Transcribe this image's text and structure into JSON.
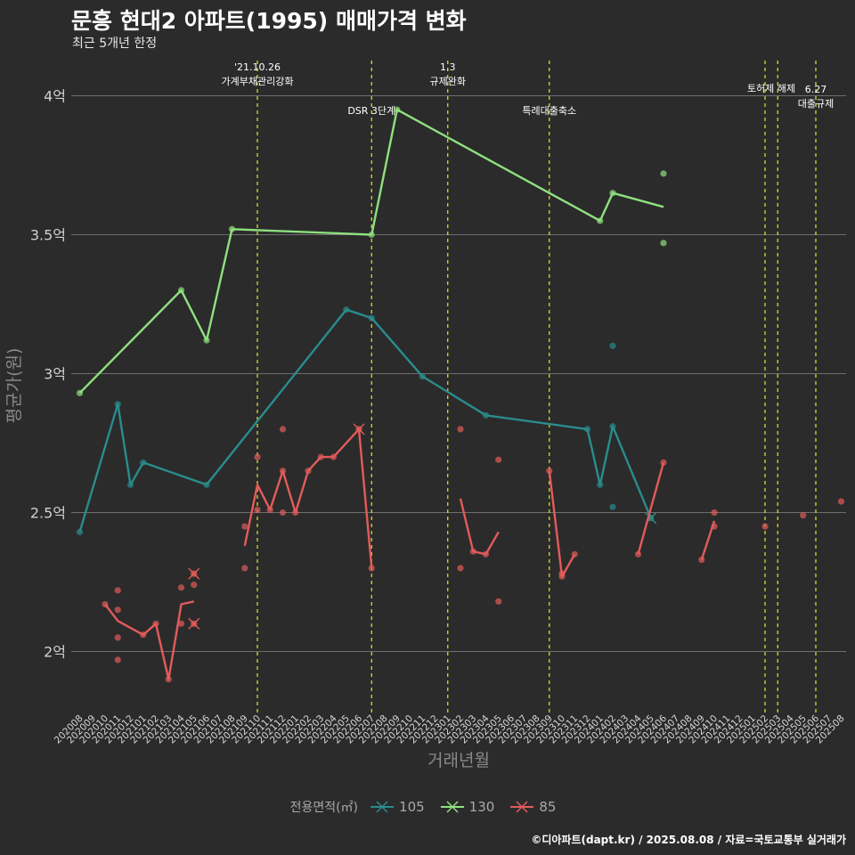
{
  "title": "문흥 현대2 아파트(1995) 매매가격 변화",
  "subtitle": "최근 5개년 한정",
  "caption": "©디아파트(dapt.kr) / 2025.08.08 / 자료=국토교통부 실거래가",
  "legend": {
    "title": "전용면적(㎡)",
    "items": [
      {
        "label": "105",
        "color": "#2a8c8c"
      },
      {
        "label": "130",
        "color": "#8fe07f"
      },
      {
        "label": "85",
        "color": "#e35b5b"
      }
    ]
  },
  "chart_data": {
    "type": "line",
    "xlabel": "거래년월",
    "ylabel": "평균가(원)",
    "ylim": [
      1.8,
      4.12
    ],
    "yticks": [
      {
        "value": 2,
        "label": "2억"
      },
      {
        "value": 2.5,
        "label": "2.5억"
      },
      {
        "value": 3,
        "label": "3억"
      },
      {
        "value": 3.5,
        "label": "3.5억"
      },
      {
        "value": 4,
        "label": "4억"
      }
    ],
    "categories": [
      "202008",
      "202009",
      "202010",
      "202011",
      "202012",
      "202101",
      "202102",
      "202103",
      "202104",
      "202105",
      "202106",
      "202107",
      "202108",
      "202109",
      "202110",
      "202111",
      "202112",
      "202201",
      "202202",
      "202203",
      "202204",
      "202205",
      "202206",
      "202207",
      "202208",
      "202209",
      "202210",
      "202211",
      "202212",
      "202301",
      "202302",
      "202303",
      "202304",
      "202305",
      "202306",
      "202307",
      "202308",
      "202309",
      "202310",
      "202311",
      "202312",
      "202401",
      "202402",
      "202403",
      "202404",
      "202405",
      "202406",
      "202407",
      "202408",
      "202409",
      "202410",
      "202411",
      "202412",
      "202501",
      "202502",
      "202503",
      "202504",
      "202505",
      "202506",
      "202507",
      "202508"
    ],
    "events": [
      {
        "x": "202110",
        "lines": [
          "'21.10.26",
          "가계부채관리강화"
        ],
        "level": 0
      },
      {
        "x": "202207",
        "lines": [
          "DSR 3단계"
        ],
        "level": 2
      },
      {
        "x": "202301",
        "lines": [
          "1.3",
          "규제완화"
        ],
        "level": 0
      },
      {
        "x": "202309",
        "lines": [
          "특례대출축소"
        ],
        "level": 2
      },
      {
        "x": "202502",
        "lines": [
          "토허제 해제"
        ],
        "level": 1,
        "anchor": "middle-right"
      },
      {
        "x": "202503",
        "lines": [],
        "level": 1
      },
      {
        "x": "202506",
        "lines": [
          "6.27",
          "대출규제"
        ],
        "level": 3
      }
    ],
    "series": [
      {
        "name": "105",
        "color": "#2a8c8c",
        "line": [
          [
            "202008",
            2.43
          ],
          [
            "202011",
            2.89
          ],
          [
            "202012",
            2.6
          ],
          [
            "202101",
            2.68
          ],
          [
            "202106",
            2.6
          ],
          [
            "202205",
            3.23
          ],
          [
            "202207",
            3.2
          ],
          [
            "202211",
            2.99
          ],
          [
            "202304",
            2.85
          ],
          [
            "202312",
            2.8
          ],
          [
            "202401",
            2.6
          ],
          [
            "202402",
            2.81
          ],
          [
            "202405",
            2.48
          ]
        ],
        "points": [
          [
            "202008",
            2.43
          ],
          [
            "202011",
            2.89
          ],
          [
            "202012",
            2.6
          ],
          [
            "202101",
            2.68
          ],
          [
            "202106",
            2.6
          ],
          [
            "202205",
            3.23
          ],
          [
            "202207",
            3.2
          ],
          [
            "202211",
            2.99
          ],
          [
            "202304",
            2.85
          ],
          [
            "202312",
            2.8
          ],
          [
            "202401",
            2.6
          ],
          [
            "202402",
            2.81
          ],
          [
            "202402",
            3.1
          ],
          [
            "202402",
            2.52
          ]
        ],
        "crosses": [
          [
            "202405",
            2.48
          ]
        ]
      },
      {
        "name": "130",
        "color": "#8fe07f",
        "line": [
          [
            "202008",
            2.93
          ],
          [
            "202104",
            3.3
          ],
          [
            "202106",
            3.12
          ],
          [
            "202108",
            3.52
          ],
          [
            "202207",
            3.5
          ],
          [
            "202209",
            3.95
          ],
          [
            "202401",
            3.55
          ],
          [
            "202402",
            3.65
          ],
          [
            "202406",
            3.6
          ]
        ],
        "points": [
          [
            "202008",
            2.93
          ],
          [
            "202104",
            3.3
          ],
          [
            "202106",
            3.12
          ],
          [
            "202108",
            3.52
          ],
          [
            "202207",
            3.5
          ],
          [
            "202209",
            3.95
          ],
          [
            "202401",
            3.55
          ],
          [
            "202402",
            3.65
          ],
          [
            "202406",
            3.72
          ],
          [
            "202406",
            3.47
          ]
        ],
        "crosses": []
      },
      {
        "name": "85",
        "color": "#e35b5b",
        "segments": [
          [
            [
              "202010",
              2.17
            ],
            [
              "202011",
              2.11
            ],
            [
              "202101",
              2.06
            ],
            [
              "202102",
              2.1
            ],
            [
              "202103",
              1.9
            ],
            [
              "202104",
              2.17
            ],
            [
              "202105",
              2.18
            ]
          ],
          [
            [
              "202109",
              2.38
            ],
            [
              "202110",
              2.6
            ],
            [
              "202111",
              2.51
            ],
            [
              "202112",
              2.65
            ],
            [
              "202201",
              2.5
            ],
            [
              "202202",
              2.65
            ],
            [
              "202203",
              2.7
            ],
            [
              "202204",
              2.7
            ],
            [
              "202206",
              2.8
            ],
            [
              "202207",
              2.3
            ]
          ],
          [
            [
              "202302",
              2.55
            ],
            [
              "202303",
              2.36
            ],
            [
              "202304",
              2.35
            ],
            [
              "202305",
              2.43
            ]
          ],
          [
            [
              "202309",
              2.65
            ],
            [
              "202310",
              2.27
            ],
            [
              "202311",
              2.35
            ]
          ],
          [
            [
              "202404",
              2.35
            ],
            [
              "202406",
              2.68
            ]
          ],
          [
            [
              "202409",
              2.33
            ],
            [
              "202410",
              2.47
            ]
          ]
        ],
        "points": [
          [
            "202010",
            2.17
          ],
          [
            "202011",
            2.22
          ],
          [
            "202011",
            2.15
          ],
          [
            "202011",
            2.05
          ],
          [
            "202011",
            1.97
          ],
          [
            "202101",
            2.06
          ],
          [
            "202102",
            2.1
          ],
          [
            "202103",
            1.9
          ],
          [
            "202104",
            2.23
          ],
          [
            "202104",
            2.1
          ],
          [
            "202105",
            2.24
          ],
          [
            "202109",
            2.45
          ],
          [
            "202109",
            2.3
          ],
          [
            "202110",
            2.7
          ],
          [
            "202110",
            2.51
          ],
          [
            "202111",
            2.51
          ],
          [
            "202112",
            2.8
          ],
          [
            "202112",
            2.65
          ],
          [
            "202112",
            2.5
          ],
          [
            "202201",
            2.5
          ],
          [
            "202202",
            2.65
          ],
          [
            "202203",
            2.7
          ],
          [
            "202204",
            2.7
          ],
          [
            "202207",
            2.3
          ],
          [
            "202302",
            2.8
          ],
          [
            "202302",
            2.3
          ],
          [
            "202303",
            2.36
          ],
          [
            "202304",
            2.35
          ],
          [
            "202305",
            2.69
          ],
          [
            "202305",
            2.18
          ],
          [
            "202309",
            2.65
          ],
          [
            "202310",
            2.28
          ],
          [
            "202310",
            2.27
          ],
          [
            "202311",
            2.35
          ],
          [
            "202404",
            2.35
          ],
          [
            "202406",
            2.68
          ],
          [
            "202409",
            2.33
          ],
          [
            "202410",
            2.5
          ],
          [
            "202410",
            2.45
          ],
          [
            "202502",
            2.45
          ],
          [
            "202505",
            2.49
          ],
          [
            "202508",
            2.54
          ]
        ],
        "crosses": [
          [
            "202105",
            2.28
          ],
          [
            "202105",
            2.1
          ],
          [
            "202206",
            2.8
          ]
        ]
      }
    ]
  }
}
